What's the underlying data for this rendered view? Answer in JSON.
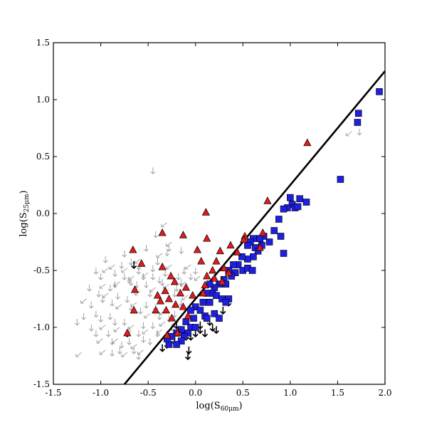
{
  "chart_data": {
    "type": "scatter",
    "title": "",
    "xlabel": "log(S",
    "xlabel_sub": "60μm",
    "xlabel_end": ")",
    "ylabel": "log(S",
    "ylabel_sub": "25μm",
    "ylabel_end": ")",
    "xlim": [
      -1.5,
      2.0
    ],
    "ylim": [
      -1.5,
      1.5
    ],
    "xticks": [
      -1.5,
      -1.0,
      -0.5,
      0.0,
      0.5,
      1.0,
      1.5,
      2.0
    ],
    "xtick_labels": [
      "-1.5",
      "-1.0",
      "-0.5",
      "0.0",
      "0.5",
      "1.0",
      "1.5",
      "2.0"
    ],
    "yticks": [
      -1.5,
      -1.0,
      -0.5,
      0.0,
      0.5,
      1.0,
      1.5
    ],
    "ytick_labels": [
      "-1.5",
      "-1.0",
      "-0.5",
      "0.0",
      "0.5",
      "1.0",
      "1.5"
    ],
    "grid": false,
    "colors": {
      "triangles": "#e31a1c",
      "squares": "#1f1fe0",
      "upper_limits": "#000000",
      "limits_grey": "#999999",
      "fit_line": "#000000"
    },
    "fit_line": {
      "x": [
        -0.75,
        2.0
      ],
      "y": [
        -1.5,
        1.25
      ]
    },
    "series": [
      {
        "marker": "square",
        "points": [
          [
            1.94,
            1.07
          ],
          [
            1.72,
            0.88
          ],
          [
            1.71,
            0.8
          ],
          [
            1.53,
            0.3
          ],
          [
            1.17,
            0.1
          ],
          [
            1.1,
            0.13
          ],
          [
            1.0,
            0.14
          ],
          [
            1.02,
            0.08
          ],
          [
            0.97,
            0.05
          ],
          [
            1.05,
            0.05
          ],
          [
            1.08,
            0.06
          ],
          [
            0.93,
            0.04
          ],
          [
            0.88,
            -0.05
          ],
          [
            0.83,
            -0.15
          ],
          [
            0.72,
            -0.2
          ],
          [
            0.78,
            -0.25
          ],
          [
            0.68,
            -0.22
          ],
          [
            0.9,
            -0.2
          ],
          [
            0.7,
            -0.28
          ],
          [
            0.61,
            -0.22
          ],
          [
            0.63,
            -0.3
          ],
          [
            0.58,
            -0.25
          ],
          [
            0.66,
            -0.33
          ],
          [
            0.55,
            -0.28
          ],
          [
            0.61,
            -0.38
          ],
          [
            0.55,
            -0.4
          ],
          [
            0.49,
            -0.38
          ],
          [
            0.93,
            -0.35
          ],
          [
            0.45,
            -0.45
          ],
          [
            0.5,
            -0.5
          ],
          [
            0.55,
            -0.48
          ],
          [
            0.6,
            -0.5
          ],
          [
            0.4,
            -0.45
          ],
          [
            0.42,
            -0.52
          ],
          [
            0.35,
            -0.5
          ],
          [
            0.38,
            -0.55
          ],
          [
            0.3,
            -0.58
          ],
          [
            0.32,
            -0.62
          ],
          [
            0.25,
            -0.62
          ],
          [
            0.2,
            -0.65
          ],
          [
            0.15,
            -0.62
          ],
          [
            0.18,
            -0.7
          ],
          [
            0.22,
            -0.72
          ],
          [
            0.12,
            -0.7
          ],
          [
            0.28,
            -0.75
          ],
          [
            0.35,
            -0.75
          ],
          [
            0.08,
            -0.78
          ],
          [
            0.15,
            -0.78
          ],
          [
            0.32,
            -0.78
          ],
          [
            0.0,
            -0.82
          ],
          [
            0.05,
            -0.85
          ],
          [
            0.1,
            -0.9
          ],
          [
            0.2,
            -0.88
          ],
          [
            -0.05,
            -0.85
          ],
          [
            -0.02,
            -0.92
          ],
          [
            0.12,
            -0.92
          ],
          [
            0.25,
            -0.92
          ],
          [
            -0.1,
            -0.95
          ],
          [
            -0.05,
            -1.0
          ],
          [
            0.0,
            -1.0
          ],
          [
            -0.15,
            -1.02
          ],
          [
            -0.08,
            -1.05
          ],
          [
            -0.2,
            -1.05
          ],
          [
            -0.12,
            -1.08
          ],
          [
            -0.25,
            -1.08
          ],
          [
            -0.15,
            -1.12
          ],
          [
            -0.28,
            -1.15
          ],
          [
            -0.3,
            -1.1
          ],
          [
            -0.2,
            -1.15
          ]
        ]
      },
      {
        "marker": "triangle",
        "points": [
          [
            1.18,
            0.62
          ],
          [
            0.76,
            0.11
          ],
          [
            0.11,
            0.01
          ],
          [
            -0.35,
            -0.17
          ],
          [
            -0.13,
            -0.19
          ],
          [
            0.12,
            -0.22
          ],
          [
            0.71,
            -0.17
          ],
          [
            0.52,
            -0.2
          ],
          [
            0.68,
            -0.3
          ],
          [
            0.44,
            -0.34
          ],
          [
            0.51,
            -0.23
          ],
          [
            -0.66,
            -0.32
          ],
          [
            0.02,
            -0.32
          ],
          [
            0.26,
            -0.33
          ],
          [
            0.37,
            -0.28
          ],
          [
            0.06,
            -0.42
          ],
          [
            0.3,
            -0.48
          ],
          [
            0.22,
            -0.42
          ],
          [
            -0.57,
            -0.44
          ],
          [
            -0.35,
            -0.47
          ],
          [
            0.18,
            -0.5
          ],
          [
            0.2,
            -0.57
          ],
          [
            0.35,
            -0.52
          ],
          [
            0.12,
            -0.55
          ],
          [
            0.28,
            -0.6
          ],
          [
            0.1,
            -0.63
          ],
          [
            -0.26,
            -0.55
          ],
          [
            -0.22,
            -0.6
          ],
          [
            0.08,
            -0.7
          ],
          [
            -0.1,
            -0.65
          ],
          [
            -0.03,
            -0.72
          ],
          [
            -0.16,
            -0.7
          ],
          [
            -0.32,
            -0.68
          ],
          [
            -0.4,
            -0.72
          ],
          [
            -0.37,
            -0.77
          ],
          [
            -0.28,
            -0.75
          ],
          [
            -0.21,
            -0.8
          ],
          [
            -0.13,
            -0.82
          ],
          [
            -0.64,
            -0.67
          ],
          [
            -0.42,
            -0.85
          ],
          [
            -0.31,
            -0.85
          ],
          [
            -0.08,
            -0.9
          ],
          [
            -0.25,
            -0.92
          ],
          [
            -0.65,
            -0.85
          ],
          [
            -0.72,
            -1.05
          ],
          [
            -0.19,
            -1.05
          ],
          [
            -0.3,
            -1.07
          ]
        ]
      },
      {
        "marker": "upper-limit-black",
        "points": [
          [
            -0.65,
            -0.45
          ],
          [
            0.35,
            -0.78
          ],
          [
            0.29,
            -0.85
          ],
          [
            0.22,
            -0.88
          ],
          [
            0.15,
            -0.95
          ],
          [
            0.05,
            -0.98
          ],
          [
            0.22,
            -1.02
          ],
          [
            0.18,
            -1.0
          ],
          [
            0.1,
            -1.05
          ],
          [
            0.05,
            -1.02
          ],
          [
            0.0,
            -1.05
          ],
          [
            -0.05,
            -1.08
          ],
          [
            -0.1,
            -1.08
          ],
          [
            -0.15,
            -1.02
          ],
          [
            -0.2,
            -0.98
          ],
          [
            -0.22,
            -1.12
          ],
          [
            -0.3,
            -1.15
          ],
          [
            -0.35,
            -1.18
          ],
          [
            -0.07,
            -1.2
          ],
          [
            -0.08,
            -1.25
          ],
          [
            -0.72,
            -1.05
          ]
        ]
      },
      {
        "marker": "upper-limit-grey",
        "points": [
          [
            1.65,
            0.72
          ],
          [
            1.73,
            0.72
          ],
          [
            -0.45,
            0.38
          ],
          [
            -0.3,
            -0.08
          ],
          [
            -0.28,
            -0.3
          ],
          [
            -0.3,
            -0.34
          ],
          [
            -0.35,
            -0.35
          ],
          [
            -0.35,
            -0.6
          ],
          [
            -0.15,
            -0.32
          ],
          [
            -0.05,
            -0.45
          ],
          [
            -0.12,
            -0.5
          ],
          [
            -0.18,
            -0.55
          ],
          [
            -0.25,
            -0.45
          ],
          [
            -0.4,
            -0.42
          ],
          [
            -0.45,
            -0.48
          ],
          [
            -0.5,
            -0.52
          ],
          [
            -0.55,
            -0.55
          ],
          [
            -0.6,
            -0.5
          ],
          [
            -0.65,
            -0.55
          ],
          [
            -0.7,
            -0.58
          ],
          [
            -0.75,
            -0.55
          ],
          [
            -0.8,
            -0.6
          ],
          [
            -0.85,
            -0.62
          ],
          [
            -0.9,
            -0.65
          ],
          [
            -0.95,
            -0.62
          ],
          [
            -1.0,
            -0.55
          ],
          [
            -1.05,
            -0.5
          ],
          [
            -0.92,
            -0.48
          ],
          [
            -0.85,
            -0.52
          ],
          [
            -0.78,
            -0.45
          ],
          [
            -0.72,
            -0.48
          ],
          [
            -0.68,
            -0.6
          ],
          [
            -0.62,
            -0.62
          ],
          [
            -0.58,
            -0.68
          ],
          [
            -0.52,
            -0.62
          ],
          [
            -0.48,
            -0.7
          ],
          [
            -0.42,
            -0.65
          ],
          [
            -0.38,
            -0.58
          ],
          [
            -0.32,
            -0.52
          ],
          [
            -0.28,
            -0.62
          ],
          [
            -0.2,
            -0.65
          ],
          [
            -0.15,
            -0.6
          ],
          [
            -0.1,
            -0.6
          ],
          [
            -0.05,
            -0.55
          ],
          [
            0.0,
            -0.5
          ],
          [
            0.05,
            -0.55
          ],
          [
            -1.02,
            -0.7
          ],
          [
            -0.98,
            -0.75
          ],
          [
            -0.92,
            -0.7
          ],
          [
            -0.88,
            -0.78
          ],
          [
            -0.82,
            -0.72
          ],
          [
            -0.78,
            -0.8
          ],
          [
            -0.72,
            -0.75
          ],
          [
            -0.68,
            -0.82
          ],
          [
            -0.62,
            -0.78
          ],
          [
            -0.58,
            -0.85
          ],
          [
            -0.52,
            -0.8
          ],
          [
            -0.48,
            -0.88
          ],
          [
            -0.42,
            -0.82
          ],
          [
            -0.38,
            -0.9
          ],
          [
            -0.32,
            -0.85
          ],
          [
            -0.28,
            -0.92
          ],
          [
            -0.22,
            -0.88
          ],
          [
            -0.18,
            -0.95
          ],
          [
            -0.12,
            -0.95
          ],
          [
            -1.1,
            -0.8
          ],
          [
            -1.15,
            -0.75
          ],
          [
            -1.05,
            -0.88
          ],
          [
            -1.0,
            -0.92
          ],
          [
            -0.95,
            -0.98
          ],
          [
            -0.9,
            -0.9
          ],
          [
            -0.85,
            -0.95
          ],
          [
            -0.8,
            -1.0
          ],
          [
            -0.75,
            -0.95
          ],
          [
            -0.7,
            -1.02
          ],
          [
            -0.65,
            -0.98
          ],
          [
            -0.6,
            -1.05
          ],
          [
            -0.55,
            -0.98
          ],
          [
            -0.5,
            -1.02
          ],
          [
            -0.45,
            -0.98
          ],
          [
            -0.4,
            -1.05
          ],
          [
            -0.35,
            -1.02
          ],
          [
            -1.1,
            -1.0
          ],
          [
            -1.05,
            -1.05
          ],
          [
            -0.98,
            -1.1
          ],
          [
            -0.92,
            -1.05
          ],
          [
            -0.88,
            -1.12
          ],
          [
            -0.82,
            -1.1
          ],
          [
            -0.78,
            -1.15
          ],
          [
            -0.7,
            -1.12
          ],
          [
            -0.62,
            -1.15
          ],
          [
            -0.55,
            -1.1
          ],
          [
            -0.48,
            -1.12
          ],
          [
            -0.95,
            -1.2
          ],
          [
            -0.88,
            -1.22
          ],
          [
            -0.8,
            -1.2
          ],
          [
            -0.72,
            -1.22
          ],
          [
            -0.65,
            -1.2
          ],
          [
            -0.6,
            -1.25
          ],
          [
            -1.2,
            -1.22
          ],
          [
            -1.25,
            -0.95
          ],
          [
            -0.42,
            -0.18
          ],
          [
            -0.25,
            -0.25
          ],
          [
            -0.52,
            -0.3
          ],
          [
            -0.75,
            -0.35
          ],
          [
            -0.58,
            -0.4
          ],
          [
            -0.22,
            -0.7
          ],
          [
            -0.15,
            -0.78
          ],
          [
            -0.08,
            -0.72
          ],
          [
            -1.18,
            -0.9
          ],
          [
            -1.12,
            -0.65
          ],
          [
            -0.85,
            -0.45
          ],
          [
            -0.95,
            -0.4
          ],
          [
            -0.68,
            -0.42
          ],
          [
            -0.55,
            -0.45
          ],
          [
            -0.45,
            -0.55
          ],
          [
            -0.38,
            -0.75
          ],
          [
            -0.32,
            -0.95
          ],
          [
            -0.25,
            -1.0
          ],
          [
            -0.18,
            -1.05
          ],
          [
            -0.55,
            -1.2
          ]
        ]
      }
    ]
  }
}
